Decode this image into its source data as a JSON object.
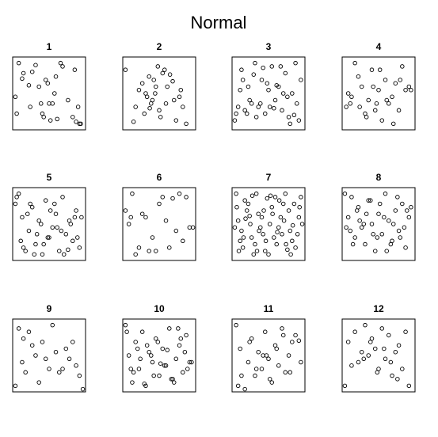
{
  "title": "Normal",
  "chart_data": [
    {
      "type": "scatter",
      "title": "1",
      "xlim": [
        -0.04,
        1.04
      ],
      "ylim": [
        -0.04,
        1.04
      ],
      "x": [
        0.05,
        0.12,
        0.2,
        0.3,
        0.45,
        0.55,
        0.7,
        0.85,
        0.95,
        0.1,
        0.22,
        0.35,
        0.4,
        0.5,
        0.6,
        0.62,
        0.78,
        0.9,
        0.0,
        0.02,
        0.25,
        0.38,
        0.48,
        0.52,
        0.58,
        0.67,
        0.88,
        0.93,
        0.97,
        0.42
      ],
      "y": [
        0.95,
        0.8,
        0.62,
        0.92,
        0.7,
        0.35,
        0.9,
        0.15,
        0.05,
        0.72,
        0.3,
        0.6,
        0.2,
        0.35,
        0.75,
        0.12,
        0.4,
        0.08,
        0.45,
        0.2,
        0.82,
        0.35,
        0.65,
        0.1,
        0.5,
        0.95,
        0.85,
        0.3,
        0.05,
        0.15
      ]
    },
    {
      "type": "scatter",
      "title": "2",
      "xlim": [
        -0.04,
        1.04
      ],
      "ylim": [
        -0.04,
        1.04
      ],
      "x": [
        0.0,
        0.15,
        0.25,
        0.3,
        0.35,
        0.4,
        0.45,
        0.5,
        0.55,
        0.6,
        0.7,
        0.75,
        0.8,
        0.85,
        0.2,
        0.28,
        0.38,
        0.42,
        0.52,
        0.62,
        0.12,
        0.32,
        0.48,
        0.66,
        0.72,
        0.82,
        0.9,
        0.36,
        0.44,
        0.58
      ],
      "y": [
        0.85,
        0.3,
        0.65,
        0.5,
        0.75,
        0.4,
        0.6,
        0.25,
        0.8,
        0.35,
        0.68,
        0.1,
        0.45,
        0.3,
        0.55,
        0.2,
        0.35,
        0.7,
        0.15,
        0.6,
        0.08,
        0.45,
        0.9,
        0.78,
        0.4,
        0.55,
        0.05,
        0.28,
        0.5,
        0.85
      ]
    },
    {
      "type": "scatter",
      "title": "3",
      "xlim": [
        -0.04,
        1.04
      ],
      "ylim": [
        -0.04,
        1.04
      ],
      "x": [
        0.05,
        0.1,
        0.15,
        0.2,
        0.25,
        0.3,
        0.35,
        0.4,
        0.45,
        0.5,
        0.55,
        0.6,
        0.65,
        0.7,
        0.75,
        0.8,
        0.85,
        0.9,
        0.95,
        0.0,
        0.08,
        0.18,
        0.28,
        0.38,
        0.48,
        0.58,
        0.68,
        0.78,
        0.88,
        0.98,
        0.12,
        0.22,
        0.32,
        0.42,
        0.52,
        0.62,
        0.72,
        0.82,
        0.92,
        0.02
      ],
      "y": [
        0.3,
        0.85,
        0.25,
        0.6,
        0.35,
        0.95,
        0.3,
        0.7,
        0.2,
        0.55,
        0.9,
        0.4,
        0.6,
        0.25,
        0.8,
        0.15,
        0.5,
        0.95,
        0.1,
        0.1,
        0.55,
        0.2,
        0.78,
        0.35,
        0.65,
        0.28,
        0.9,
        0.45,
        0.18,
        0.7,
        0.7,
        0.4,
        0.15,
        0.88,
        0.3,
        0.62,
        0.5,
        0.05,
        0.35,
        0.2
      ]
    },
    {
      "type": "scatter",
      "title": "4",
      "xlim": [
        -0.04,
        1.04
      ],
      "ylim": [
        -0.04,
        1.04
      ],
      "x": [
        0.02,
        0.05,
        0.08,
        0.15,
        0.2,
        0.25,
        0.3,
        0.35,
        0.4,
        0.45,
        0.5,
        0.55,
        0.6,
        0.65,
        0.7,
        0.75,
        0.8,
        0.85,
        0.9,
        0.98,
        0.1,
        0.22,
        0.32,
        0.42,
        0.52,
        0.62,
        0.72,
        0.82,
        0.95,
        0.47
      ],
      "y": [
        0.3,
        0.5,
        0.35,
        0.95,
        0.75,
        0.6,
        0.2,
        0.4,
        0.85,
        0.25,
        0.55,
        0.1,
        0.7,
        0.35,
        0.45,
        0.65,
        0.25,
        0.9,
        0.55,
        0.55,
        0.45,
        0.3,
        0.15,
        0.6,
        0.85,
        0.4,
        0.05,
        0.7,
        0.6,
        0.35
      ]
    },
    {
      "type": "scatter",
      "title": "5",
      "xlim": [
        -0.04,
        1.04
      ],
      "ylim": [
        -0.04,
        1.04
      ],
      "x": [
        0.05,
        0.1,
        0.15,
        0.2,
        0.25,
        0.3,
        0.35,
        0.4,
        0.45,
        0.5,
        0.55,
        0.6,
        0.65,
        0.7,
        0.75,
        0.8,
        0.85,
        0.9,
        0.95,
        0.0,
        0.08,
        0.18,
        0.28,
        0.38,
        0.48,
        0.58,
        0.68,
        0.78,
        0.88,
        0.98,
        0.12,
        0.22,
        0.32,
        0.42,
        0.52,
        0.62,
        0.72,
        0.82,
        0.92,
        0.02
      ],
      "y": [
        0.95,
        0.6,
        0.1,
        0.4,
        0.75,
        0.2,
        0.55,
        0.05,
        0.85,
        0.3,
        0.45,
        0.65,
        0.1,
        0.9,
        0.35,
        0.55,
        0.25,
        0.7,
        0.15,
        0.8,
        0.25,
        0.65,
        0.05,
        0.5,
        0.3,
        0.8,
        0.4,
        0.12,
        0.6,
        0.6,
        0.15,
        0.8,
        0.35,
        0.2,
        0.7,
        0.45,
        0.05,
        0.5,
        0.3,
        0.9
      ]
    },
    {
      "type": "scatter",
      "title": "6",
      "xlim": [
        -0.04,
        1.04
      ],
      "ylim": [
        -0.04,
        1.04
      ],
      "x": [
        0.0,
        0.05,
        0.1,
        0.15,
        0.25,
        0.35,
        0.55,
        0.65,
        0.7,
        0.8,
        0.9,
        0.95,
        1.0,
        0.2,
        0.3,
        0.45,
        0.6,
        0.75,
        0.85,
        0.08,
        0.5,
        0.4
      ],
      "y": [
        0.7,
        0.5,
        0.95,
        0.05,
        0.65,
        0.1,
        0.9,
        0.15,
        0.88,
        0.95,
        0.9,
        0.45,
        0.45,
        0.15,
        0.6,
        0.1,
        0.55,
        0.4,
        0.25,
        0.6,
        0.8,
        0.3
      ]
    },
    {
      "type": "scatter",
      "title": "7",
      "xlim": [
        -0.04,
        1.04
      ],
      "ylim": [
        -0.04,
        1.04
      ],
      "x": [
        0.02,
        0.1,
        0.2,
        0.3,
        0.4,
        0.5,
        0.6,
        0.7,
        0.8,
        0.9,
        0.05,
        0.15,
        0.25,
        0.35,
        0.45,
        0.55,
        0.65,
        0.75,
        0.85,
        0.95,
        0.0,
        0.12,
        0.22,
        0.32,
        0.42,
        0.52,
        0.62,
        0.72,
        0.82,
        0.98,
        0.08,
        0.18,
        0.28,
        0.38,
        0.48,
        0.58,
        0.68,
        0.78,
        0.88,
        1.0,
        0.03,
        0.13,
        0.23,
        0.33,
        0.43,
        0.53,
        0.63,
        0.73,
        0.83,
        0.93,
        0.06,
        0.16,
        0.26,
        0.36,
        0.46,
        0.56,
        0.66,
        0.76,
        0.86,
        0.96
      ],
      "y": [
        0.95,
        0.4,
        0.8,
        0.2,
        0.6,
        0.05,
        0.9,
        0.35,
        0.7,
        0.15,
        0.55,
        0.85,
        0.3,
        0.65,
        0.1,
        0.75,
        0.45,
        0.95,
        0.25,
        0.6,
        0.45,
        0.15,
        0.62,
        0.95,
        0.35,
        0.5,
        0.2,
        0.8,
        0.4,
        0.9,
        0.25,
        0.7,
        0.05,
        0.45,
        0.88,
        0.3,
        0.6,
        0.12,
        0.8,
        0.5,
        0.75,
        0.3,
        0.5,
        0.1,
        0.7,
        0.92,
        0.38,
        0.55,
        0.05,
        0.35,
        0.1,
        0.58,
        0.92,
        0.4,
        0.25,
        0.65,
        0.85,
        0.2,
        0.48,
        0.75
      ]
    },
    {
      "type": "scatter",
      "title": "8",
      "xlim": [
        -0.04,
        1.04
      ],
      "ylim": [
        -0.04,
        1.04
      ],
      "x": [
        0.05,
        0.1,
        0.15,
        0.2,
        0.25,
        0.3,
        0.35,
        0.4,
        0.45,
        0.5,
        0.55,
        0.6,
        0.65,
        0.7,
        0.75,
        0.8,
        0.85,
        0.9,
        0.95,
        0.0,
        0.08,
        0.18,
        0.28,
        0.38,
        0.48,
        0.58,
        0.68,
        0.78,
        0.88,
        0.98,
        0.12,
        0.22,
        0.32,
        0.42,
        0.52,
        0.62,
        0.72,
        0.82,
        0.92,
        0.02
      ],
      "y": [
        0.6,
        0.9,
        0.3,
        0.75,
        0.45,
        0.2,
        0.85,
        0.5,
        0.1,
        0.65,
        0.35,
        0.95,
        0.55,
        0.25,
        0.7,
        0.4,
        0.8,
        0.15,
        0.6,
        0.95,
        0.4,
        0.7,
        0.5,
        0.85,
        0.3,
        0.6,
        0.2,
        0.9,
        0.45,
        0.75,
        0.2,
        0.55,
        0.65,
        0.35,
        0.8,
        0.1,
        0.5,
        0.3,
        0.7,
        0.45
      ]
    },
    {
      "type": "scatter",
      "title": "9",
      "xlim": [
        -0.04,
        1.04
      ],
      "ylim": [
        -0.04,
        1.04
      ],
      "x": [
        0.0,
        0.05,
        0.1,
        0.15,
        0.2,
        0.25,
        0.35,
        0.4,
        0.45,
        0.5,
        0.55,
        0.6,
        0.65,
        0.75,
        0.8,
        0.85,
        0.9,
        0.95,
        1.0,
        0.3,
        0.7,
        0.12
      ],
      "y": [
        0.05,
        0.9,
        0.4,
        0.25,
        0.85,
        0.65,
        0.1,
        0.7,
        0.45,
        0.3,
        0.95,
        0.55,
        0.25,
        0.6,
        0.45,
        0.7,
        0.35,
        0.2,
        0.0,
        0.5,
        0.3,
        0.75
      ]
    },
    {
      "type": "scatter",
      "title": "10",
      "xlim": [
        -0.04,
        1.04
      ],
      "ylim": [
        -0.04,
        1.04
      ],
      "x": [
        0.05,
        0.1,
        0.15,
        0.2,
        0.25,
        0.3,
        0.35,
        0.4,
        0.45,
        0.5,
        0.55,
        0.6,
        0.65,
        0.7,
        0.75,
        0.8,
        0.85,
        0.9,
        0.95,
        0.0,
        0.08,
        0.18,
        0.28,
        0.38,
        0.48,
        0.58,
        0.68,
        0.78,
        0.88,
        0.98,
        0.12,
        0.22,
        0.32,
        0.42,
        0.52,
        0.62,
        0.72,
        0.82,
        0.92,
        0.02
      ],
      "y": [
        0.5,
        0.1,
        0.7,
        0.3,
        0.85,
        0.05,
        0.55,
        0.4,
        0.75,
        0.2,
        0.6,
        0.35,
        0.9,
        0.15,
        0.45,
        0.65,
        0.25,
        0.8,
        0.4,
        0.95,
        0.3,
        0.6,
        0.08,
        0.5,
        0.7,
        0.35,
        0.15,
        0.9,
        0.55,
        0.4,
        0.25,
        0.45,
        0.65,
        0.2,
        0.38,
        0.58,
        0.1,
        0.75,
        0.3,
        0.85
      ]
    },
    {
      "type": "scatter",
      "title": "11",
      "xlim": [
        -0.04,
        1.04
      ],
      "ylim": [
        -0.04,
        1.04
      ],
      "x": [
        0.02,
        0.05,
        0.08,
        0.15,
        0.2,
        0.25,
        0.3,
        0.35,
        0.4,
        0.45,
        0.5,
        0.55,
        0.6,
        0.65,
        0.7,
        0.75,
        0.8,
        0.85,
        0.9,
        0.98,
        0.1,
        0.22,
        0.32,
        0.42,
        0.52,
        0.62,
        0.72,
        0.82,
        0.95,
        0.47
      ],
      "y": [
        0.95,
        0.05,
        0.6,
        0.0,
        0.4,
        0.75,
        0.2,
        0.55,
        0.3,
        0.85,
        0.45,
        0.1,
        0.65,
        0.35,
        0.9,
        0.25,
        0.5,
        0.7,
        0.8,
        0.4,
        0.2,
        0.7,
        0.3,
        0.5,
        0.15,
        0.6,
        0.8,
        0.25,
        0.72,
        0.5
      ]
    },
    {
      "type": "scatter",
      "title": "12",
      "xlim": [
        -0.04,
        1.04
      ],
      "ylim": [
        -0.04,
        1.04
      ],
      "x": [
        0.0,
        0.05,
        0.1,
        0.15,
        0.2,
        0.25,
        0.3,
        0.35,
        0.4,
        0.45,
        0.5,
        0.55,
        0.6,
        0.65,
        0.7,
        0.75,
        0.8,
        0.85,
        0.9,
        0.95,
        0.38,
        0.48,
        0.58,
        0.68,
        0.78,
        0.28
      ],
      "y": [
        0.05,
        0.7,
        0.35,
        0.85,
        0.4,
        0.55,
        0.95,
        0.5,
        0.75,
        0.6,
        0.3,
        0.9,
        0.45,
        0.8,
        0.2,
        0.55,
        0.65,
        0.3,
        0.85,
        0.05,
        0.7,
        0.25,
        0.6,
        0.4,
        0.15,
        0.45
      ]
    }
  ]
}
